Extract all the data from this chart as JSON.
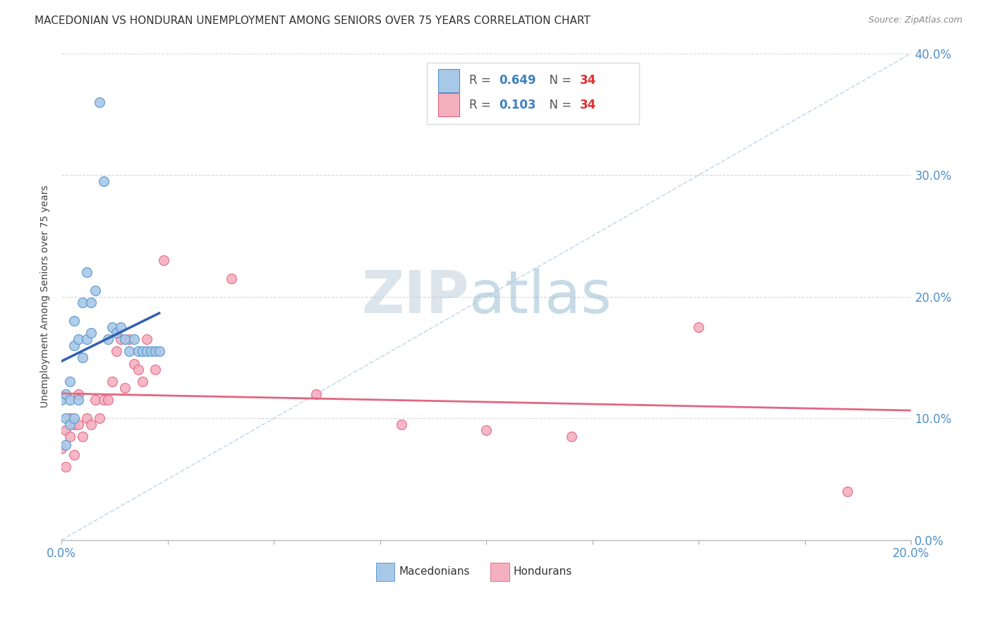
{
  "title": "MACEDONIAN VS HONDURAN UNEMPLOYMENT AMONG SENIORS OVER 75 YEARS CORRELATION CHART",
  "source": "Source: ZipAtlas.com",
  "ylabel": "Unemployment Among Seniors over 75 years",
  "legend_macedonians": "Macedonians",
  "legend_hondurans": "Hondurans",
  "R_macedonian": "0.649",
  "N_macedonian": "34",
  "R_honduran": "0.103",
  "N_honduran": "34",
  "macedonian_color": "#a8c8e8",
  "honduran_color": "#f5b0c0",
  "macedonian_edge_color": "#5090c8",
  "honduran_edge_color": "#e06080",
  "macedonian_line_color": "#3060b0",
  "honduran_line_color": "#e06880",
  "macedonian_x": [
    0.0,
    0.001,
    0.001,
    0.001,
    0.002,
    0.002,
    0.002,
    0.003,
    0.003,
    0.003,
    0.004,
    0.004,
    0.005,
    0.005,
    0.006,
    0.006,
    0.007,
    0.007,
    0.008,
    0.009,
    0.01,
    0.011,
    0.012,
    0.013,
    0.014,
    0.015,
    0.016,
    0.017,
    0.018,
    0.019,
    0.02,
    0.021,
    0.022,
    0.023
  ],
  "macedonian_y": [
    0.115,
    0.1,
    0.12,
    0.078,
    0.115,
    0.13,
    0.095,
    0.18,
    0.16,
    0.1,
    0.165,
    0.115,
    0.195,
    0.15,
    0.22,
    0.165,
    0.195,
    0.17,
    0.205,
    0.36,
    0.295,
    0.165,
    0.175,
    0.17,
    0.175,
    0.165,
    0.155,
    0.165,
    0.155,
    0.155,
    0.155,
    0.155,
    0.155,
    0.155
  ],
  "honduran_x": [
    0.0,
    0.001,
    0.001,
    0.002,
    0.002,
    0.003,
    0.003,
    0.004,
    0.004,
    0.005,
    0.006,
    0.007,
    0.008,
    0.009,
    0.01,
    0.011,
    0.012,
    0.013,
    0.014,
    0.015,
    0.016,
    0.017,
    0.018,
    0.019,
    0.02,
    0.022,
    0.024,
    0.04,
    0.06,
    0.08,
    0.1,
    0.12,
    0.15,
    0.185
  ],
  "honduran_y": [
    0.075,
    0.09,
    0.06,
    0.085,
    0.1,
    0.095,
    0.07,
    0.12,
    0.095,
    0.085,
    0.1,
    0.095,
    0.115,
    0.1,
    0.115,
    0.115,
    0.13,
    0.155,
    0.165,
    0.125,
    0.165,
    0.145,
    0.14,
    0.13,
    0.165,
    0.14,
    0.23,
    0.215,
    0.12,
    0.095,
    0.09,
    0.085,
    0.175,
    0.04
  ],
  "xmin": 0.0,
  "xmax": 0.2,
  "ymin": 0.0,
  "ymax": 0.4,
  "background_color": "#ffffff",
  "grid_color": "#d8d8d8",
  "zip_color": "#c8d8e8",
  "atlas_color": "#90b8d8"
}
